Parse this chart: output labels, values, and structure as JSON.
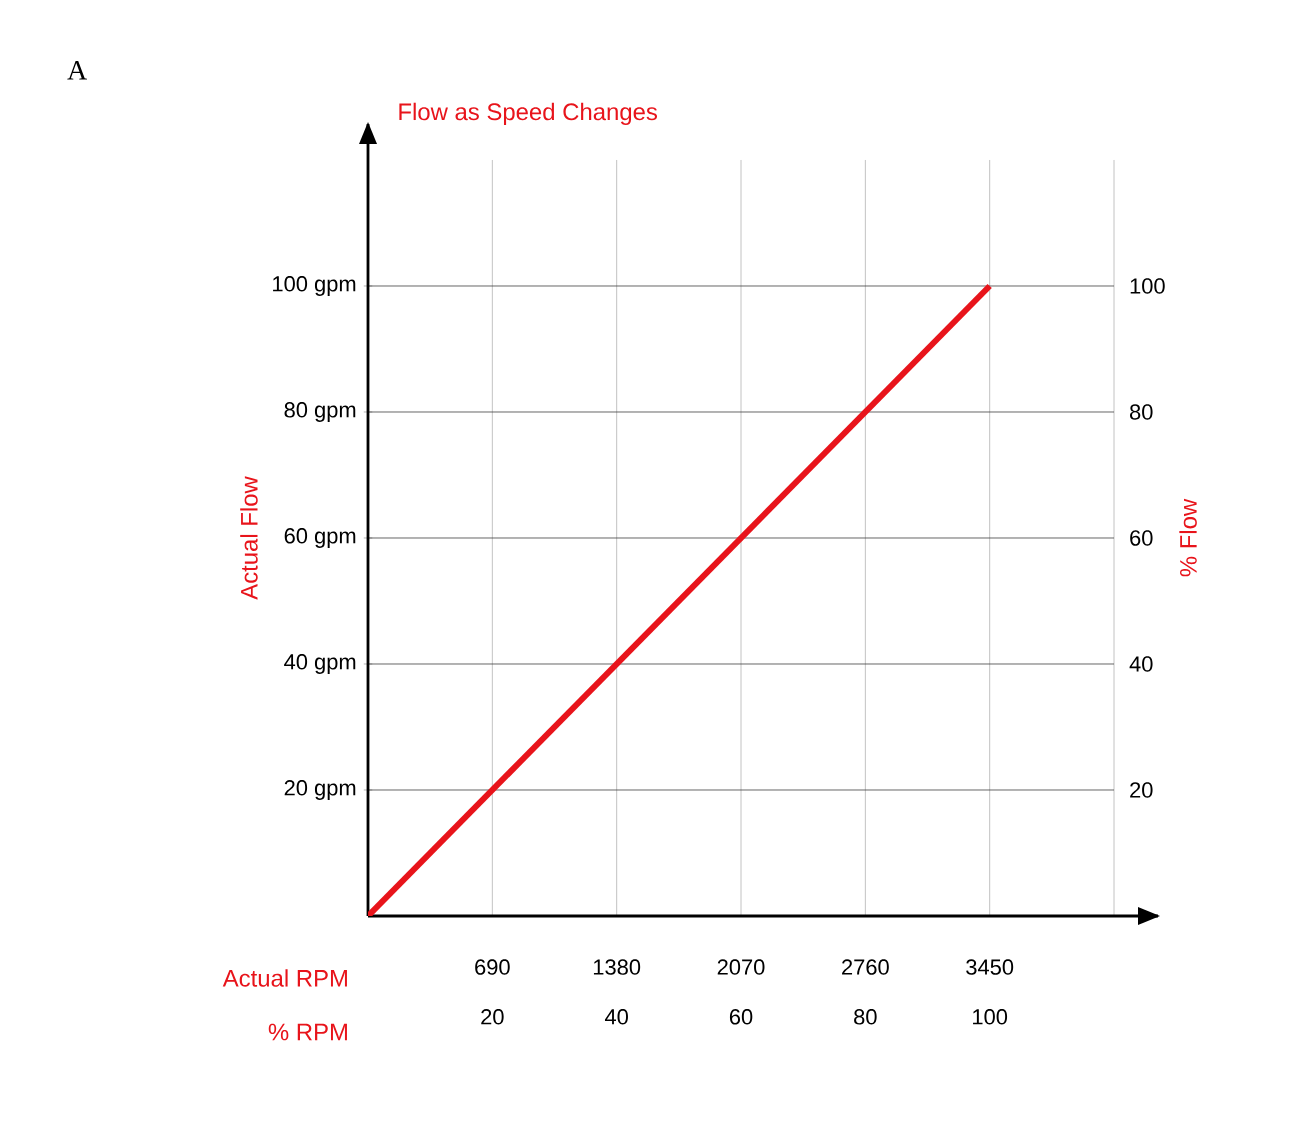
{
  "chart_data": {
    "type": "line",
    "title": "Flow as Speed Changes",
    "xlabel": "Actual RPM",
    "x2label": "% RPM",
    "ylabel": "Actual Flow",
    "y2label": "% Flow",
    "annotations": [
      "A"
    ],
    "x": [
      0,
      3450
    ],
    "series": [
      {
        "color": "#e8141b",
        "values": [
          0,
          100
        ]
      }
    ],
    "xlim": [
      0,
      4140
    ],
    "xticks": [
      690,
      1380,
      2070,
      2760,
      3450,
      {
        "value": 4140,
        "label": null
      }
    ],
    "x2lim": [
      0,
      120
    ],
    "x2ticks": [
      20,
      40,
      60,
      80,
      100
    ],
    "ylim": [
      0,
      120
    ],
    "yticks": [
      {
        "value": 20,
        "label": "20 gpm"
      },
      {
        "value": 40,
        "label": "40 gpm"
      },
      {
        "value": 60,
        "label": "60 gpm"
      },
      {
        "value": 80,
        "label": "80 gpm"
      },
      {
        "value": 100,
        "label": "100 gpm"
      }
    ],
    "y2lim": [
      0,
      120
    ],
    "y2ticks": [
      20,
      40,
      60,
      80,
      100
    ],
    "grid": true
  }
}
